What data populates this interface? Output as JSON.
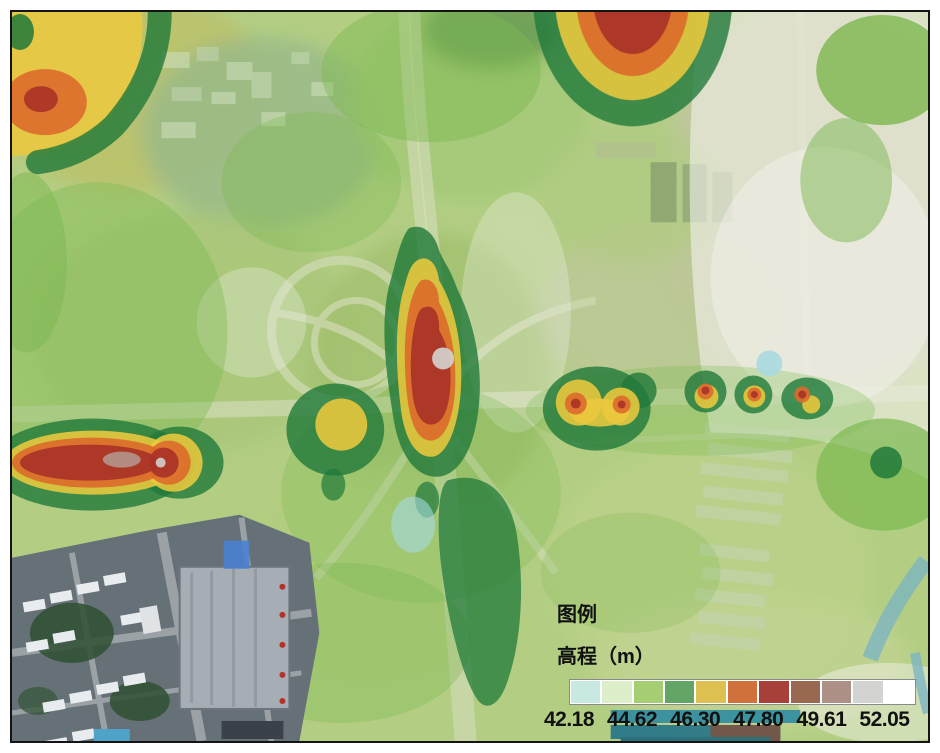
{
  "legend": {
    "title": "图例",
    "subtitle": "高程（m）",
    "colors": [
      "#c7e9e2",
      "#ddefca",
      "#a5cd72",
      "#62a566",
      "#dcc050",
      "#d0703a",
      "#a64038",
      "#996851",
      "#ad9186",
      "#d3d3d1",
      "#fefefe"
    ],
    "ticks": [
      "42.18",
      "44.62",
      "46.30",
      "47.80",
      "49.61",
      "52.05"
    ]
  },
  "palette": {
    "heat-dark-green": "#20793b",
    "heat-med-green": "#7cb84f",
    "heat-pale-green": "#aACD6e",
    "heat-yellow": "#ecc93e",
    "heat-orange": "#dd6a2b",
    "heat-red": "#a93327",
    "heat-mauve": "#b59a90",
    "heat-gray": "#d2d0cd",
    "heat-white": "#f3f1ee",
    "heat-cyan": "#a6d9e2"
  }
}
